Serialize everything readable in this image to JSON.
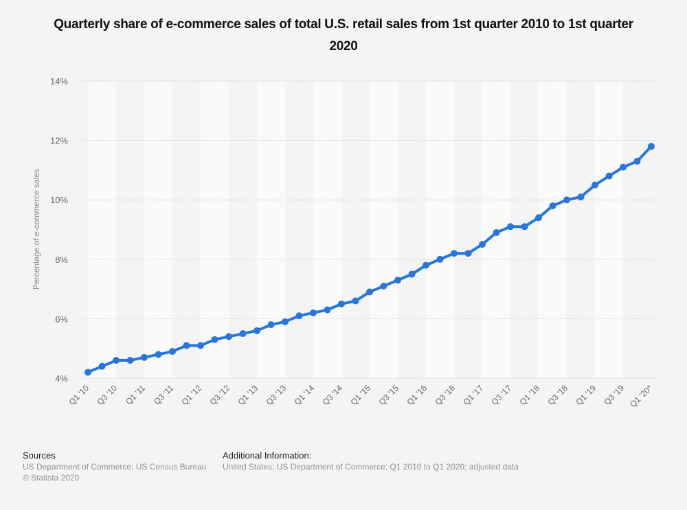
{
  "chart_data": {
    "type": "line",
    "title": "Quarterly share of e-commerce sales of total U.S. retail sales from 1st quarter 2010 to 1st quarter 2020",
    "xlabel": "",
    "ylabel": "Percentage of e-commerce sales",
    "ylim": [
      4,
      14
    ],
    "yticks": [
      4,
      6,
      8,
      10,
      12,
      14
    ],
    "ytick_labels": [
      "4%",
      "6%",
      "8%",
      "10%",
      "12%",
      "14%"
    ],
    "grid": true,
    "legend": "none",
    "categories": [
      "Q1 '10",
      "Q2 '10",
      "Q3 '10",
      "Q4 '10",
      "Q1 '11",
      "Q2 '11",
      "Q3 '11",
      "Q4 '11",
      "Q1 '12",
      "Q2 '12",
      "Q3 '12",
      "Q4 '12",
      "Q1 '13",
      "Q2 '13",
      "Q3 '13",
      "Q4 '13",
      "Q1 '14",
      "Q2 '14",
      "Q3 '14",
      "Q4 '14",
      "Q1 '15",
      "Q2 '15",
      "Q3 '15",
      "Q4 '15",
      "Q1 '16",
      "Q2 '16",
      "Q3 '16",
      "Q4 '16",
      "Q1 '17",
      "Q2 '17",
      "Q3 '17",
      "Q4 '17",
      "Q1 '18",
      "Q2 '18",
      "Q3 '18",
      "Q4 '18",
      "Q1 '19",
      "Q2 '19",
      "Q3 '19",
      "Q4 '19",
      "Q1 '20*"
    ],
    "xtick_labels": [
      "Q1 '10",
      "Q3 '10",
      "Q1 '11",
      "Q3 '11",
      "Q1 '12",
      "Q3 '12",
      "Q1 '13",
      "Q3 '13",
      "Q1 '14",
      "Q3 '14",
      "Q1 '15",
      "Q3 '15",
      "Q1 '16",
      "Q3 '16",
      "Q1 '17",
      "Q3 '17",
      "Q1 '18",
      "Q3 '18",
      "Q1 '19",
      "Q3 '19",
      "Q1 '20*"
    ],
    "series": [
      {
        "name": "Share of e-commerce sales",
        "color": "#2876dd",
        "values": [
          4.2,
          4.4,
          4.6,
          4.6,
          4.7,
          4.8,
          4.9,
          5.1,
          5.1,
          5.3,
          5.4,
          5.5,
          5.6,
          5.8,
          5.9,
          6.1,
          6.2,
          6.3,
          6.5,
          6.6,
          6.9,
          7.1,
          7.3,
          7.5,
          7.8,
          8.0,
          8.2,
          8.2,
          8.5,
          8.9,
          9.1,
          9.1,
          9.4,
          9.8,
          10.0,
          10.1,
          10.5,
          10.8,
          11.1,
          11.3,
          11.8
        ]
      }
    ]
  },
  "footer": {
    "sources_heading": "Sources",
    "sources_line1": "US Department of Commerce; US Census Bureau",
    "sources_line2": "© Statista 2020",
    "info_heading": "Additional Information:",
    "info_line1": "United States; US Department of Commerce; Q1 2010 to Q1 2020; adjusted data"
  }
}
